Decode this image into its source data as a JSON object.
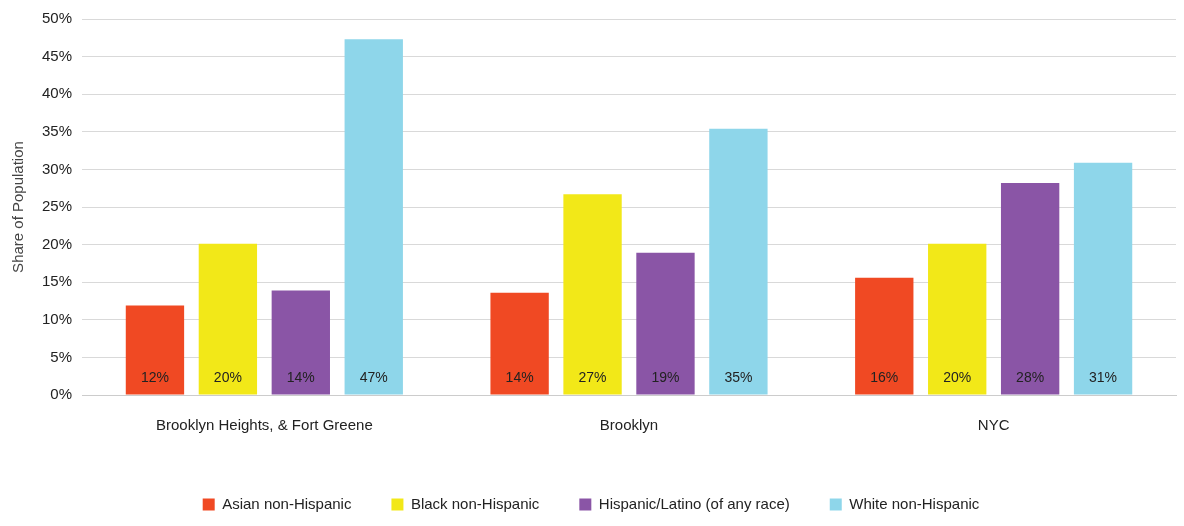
{
  "chart_data": {
    "type": "bar",
    "ylabel": "Share of Population",
    "categories": [
      "Brooklyn Heights, & Fort Greene",
      "Brooklyn",
      "NYC"
    ],
    "series": [
      {
        "name": "Asian non-Hispanic",
        "color": "#f04923",
        "values": [
          11.9,
          13.6,
          15.6
        ],
        "value_labels": [
          "12%",
          "14%",
          "16%"
        ]
      },
      {
        "name": "Black non-Hispanic",
        "color": "#f2e818",
        "values": [
          20.1,
          26.7,
          20.1
        ],
        "value_labels": [
          "20%",
          "27%",
          "20%"
        ]
      },
      {
        "name": "Hispanic/Latino (of any race)",
        "color": "#8a55a6",
        "values": [
          13.9,
          18.9,
          28.2
        ],
        "value_labels": [
          "14%",
          "19%",
          "28%"
        ]
      },
      {
        "name": "White non-Hispanic",
        "color": "#8ed6ea",
        "values": [
          47.3,
          35.4,
          30.9
        ],
        "value_labels": [
          "47%",
          "35%",
          "31%"
        ]
      }
    ],
    "ylim": [
      0,
      50
    ],
    "yticks": [
      {
        "value": 0,
        "label": "0%"
      },
      {
        "value": 5,
        "label": "5%"
      },
      {
        "value": 10,
        "label": "10%"
      },
      {
        "value": 15,
        "label": "15%"
      },
      {
        "value": 20,
        "label": "20%"
      },
      {
        "value": 25,
        "label": "25%"
      },
      {
        "value": 30,
        "label": "30%"
      },
      {
        "value": 35,
        "label": "35%"
      },
      {
        "value": 40,
        "label": "40%"
      },
      {
        "value": 45,
        "label": "45%"
      },
      {
        "value": 50,
        "label": "50%"
      }
    ],
    "grid": "y",
    "legend": "bottom"
  }
}
